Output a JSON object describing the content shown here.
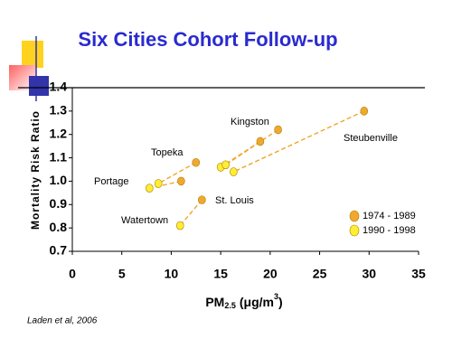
{
  "chart_data": {
    "type": "scatter",
    "title": "Six Cities Cohort Follow-up",
    "y_label": "Mortality Risk Ratio",
    "x_label": [
      "PM",
      "2.5",
      "(μg/m",
      "3",
      ")"
    ],
    "source": "Laden et al, 2006",
    "annotations": [
      "Portage",
      "Topeka",
      "Watertown",
      "St. Louis",
      "Kingston",
      "Steubenville"
    ],
    "xlim": [
      0,
      35
    ],
    "xticks": [
      0,
      5,
      10,
      15,
      20,
      25,
      30,
      35
    ],
    "ylim": [
      0.7,
      1.4
    ],
    "yticks": [
      0.7,
      0.8,
      0.9,
      {
        "value": 1,
        "label": "1.0"
      },
      1.1,
      1.2,
      1.3,
      1.4
    ],
    "series": [
      {
        "name": "1974 - 1989",
        "color": "#f0a830",
        "x": [
          11.0,
          12.5,
          13.1,
          19.0,
          20.8,
          29.5
        ],
        "values": [
          1.0,
          1.08,
          0.92,
          1.17,
          1.22,
          1.3
        ]
      },
      {
        "name": "1990 - 1998",
        "color": "#ffee33",
        "x": [
          7.8,
          8.7,
          10.9,
          15.0,
          15.5,
          16.3
        ],
        "values": [
          0.97,
          0.99,
          0.81,
          1.06,
          1.07,
          1.04
        ]
      }
    ]
  }
}
